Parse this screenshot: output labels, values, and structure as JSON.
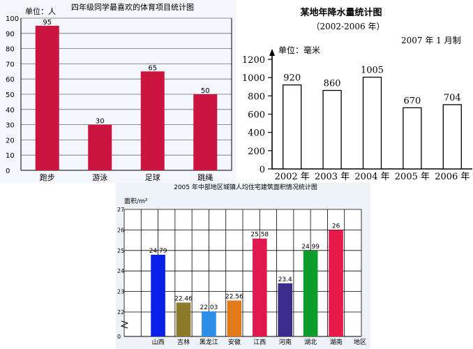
{
  "chart_data": [
    {
      "type": "bar",
      "title": "四年级同学最喜欢的体育项目统计图",
      "ylabel": "单位：人",
      "categories": [
        "跑步",
        "游泳",
        "足球",
        "跳绳"
      ],
      "values": [
        95,
        30,
        65,
        50
      ],
      "value_labels": [
        "95",
        "30",
        "65",
        "50"
      ],
      "yticks": [
        "0",
        "10",
        "20",
        "30",
        "40",
        "50",
        "60",
        "70",
        "80",
        "90",
        "100"
      ],
      "ylim": [
        0,
        100
      ],
      "grid": "horizontal",
      "bar_color": "#cc1441"
    },
    {
      "type": "bar",
      "title": "某地年降水量统计图",
      "subtitle": "（2002-2006 年）",
      "note": "2007 年 1 月制",
      "ylabel": "单位：毫米",
      "categories": [
        "2002 年",
        "2003 年",
        "2004 年",
        "2005 年",
        "2006 年"
      ],
      "values": [
        920,
        860,
        1005,
        670,
        704
      ],
      "value_labels": [
        "920",
        "860",
        "1005",
        "670",
        "704"
      ],
      "yticks": [
        "0",
        "200",
        "400",
        "600",
        "800",
        "1000",
        "1200"
      ],
      "ylim": [
        0,
        1300
      ],
      "grid": "none",
      "bar_color": "#ffffff"
    },
    {
      "type": "bar",
      "title": "2005 年中部地区城镇人均住宅建筑面积情况统计图",
      "ylabel": "面积/m²",
      "xlabel": "地区",
      "categories": [
        "山西",
        "吉林",
        "黑龙江",
        "安徽",
        "江西",
        "河南",
        "湖北",
        "湖南"
      ],
      "values": [
        24.79,
        22.46,
        22.03,
        22.56,
        25.58,
        23.4,
        24.99,
        26
      ],
      "value_labels": [
        "24.79",
        "22.46",
        "22.03",
        "22.56",
        "25.58",
        "23.4",
        "24.99",
        "26"
      ],
      "yticks": [
        "0",
        "22",
        "23",
        "24",
        "25",
        "26",
        "27"
      ],
      "ylim": [
        21,
        27
      ],
      "axis_break": true,
      "grid": "both",
      "colors": [
        "#0a20e6",
        "#8d7a2b",
        "#2b8fe8",
        "#e27a1c",
        "#e01a4f",
        "#3b2c8c",
        "#0e9c2c",
        "#e81a4a"
      ]
    }
  ]
}
